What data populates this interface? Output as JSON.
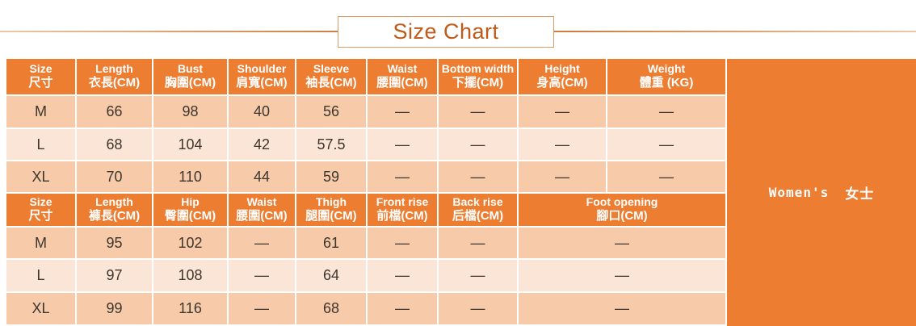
{
  "title": "Size Chart",
  "category_panel": {
    "label_en": "Women's",
    "label_zh": "女士"
  },
  "colors": {
    "accent_orange": "#ed7d31",
    "row_dark_peach": "#f7caa9",
    "row_light_peach": "#fbe5d6",
    "title_text": "#c05a18",
    "title_box_border": "#e09a66",
    "cell_text": "#3d362e",
    "grid_line": "#ffffff"
  },
  "tops_table": {
    "headers": [
      {
        "en": "Size",
        "zh": "尺寸"
      },
      {
        "en": "Length",
        "zh": "衣長(CM)"
      },
      {
        "en": "Bust",
        "zh": "胸圍(CM)"
      },
      {
        "en": "Shoulder",
        "zh": "肩寬(CM)"
      },
      {
        "en": "Sleeve",
        "zh": "袖長(CM)"
      },
      {
        "en": "Waist",
        "zh": "腰圍(CM)"
      },
      {
        "en": "Bottom width",
        "zh": "下擺(CM)"
      },
      {
        "en": "Height",
        "zh": "身高(CM)"
      },
      {
        "en": "Weight",
        "zh": "體重 (KG)"
      }
    ],
    "column_spans": [
      1,
      1,
      1,
      1,
      1,
      1,
      1,
      1,
      1
    ],
    "rows": [
      [
        "M",
        "66",
        "98",
        "40",
        "56",
        "—",
        "—",
        "—",
        "—"
      ],
      [
        "L",
        "68",
        "104",
        "42",
        "57.5",
        "—",
        "—",
        "—",
        "—"
      ],
      [
        "XL",
        "70",
        "110",
        "44",
        "59",
        "—",
        "—",
        "—",
        "—"
      ]
    ]
  },
  "pants_table": {
    "headers": [
      {
        "en": "Size",
        "zh": "尺寸"
      },
      {
        "en": "Length",
        "zh": "褲長(CM)"
      },
      {
        "en": "Hip",
        "zh": "臀圍(CM)"
      },
      {
        "en": "Waist",
        "zh": "腰圍(CM)"
      },
      {
        "en": "Thigh",
        "zh": "腿圍(CM)"
      },
      {
        "en": "Front rise",
        "zh": "前檔(CM)"
      },
      {
        "en": "Back rise",
        "zh": "后檔(CM)"
      },
      {
        "en": "Foot opening",
        "zh": "腳口(CM)"
      }
    ],
    "column_spans": [
      1,
      1,
      1,
      1,
      1,
      1,
      1,
      2
    ],
    "rows": [
      [
        "M",
        "95",
        "102",
        "—",
        "61",
        "—",
        "—",
        "—"
      ],
      [
        "L",
        "97",
        "108",
        "—",
        "64",
        "—",
        "—",
        "—"
      ],
      [
        "XL",
        "99",
        "116",
        "—",
        "68",
        "—",
        "—",
        "—"
      ]
    ]
  }
}
